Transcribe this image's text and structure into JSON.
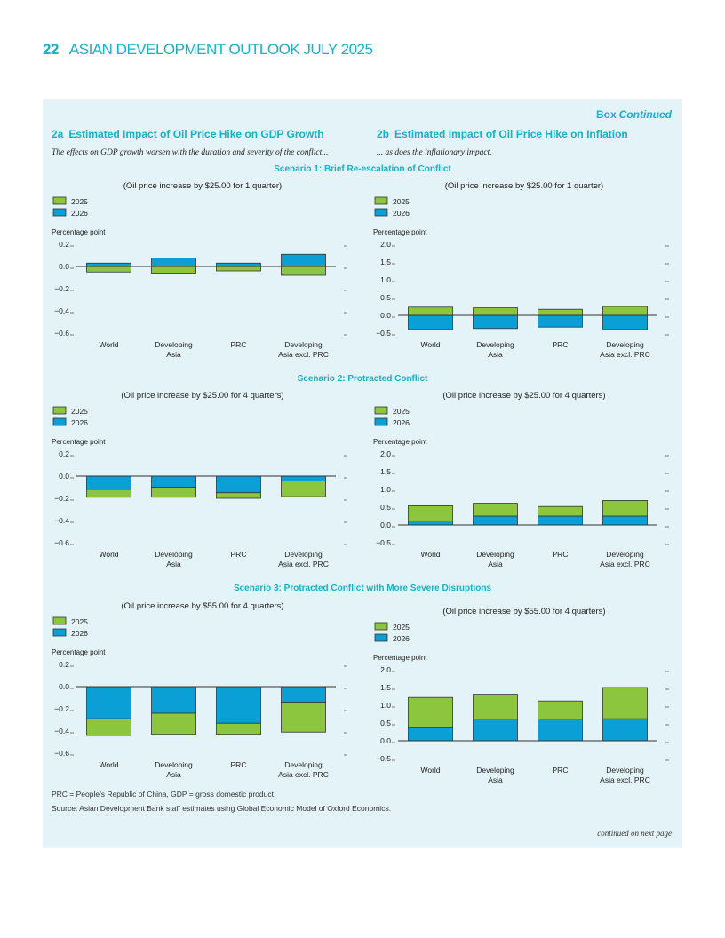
{
  "header": {
    "page_number": "22",
    "publication": "ASIAN DEVELOPMENT OUTLOOK JULY 2025"
  },
  "box": {
    "label": "Box",
    "label_suffix": "Continued",
    "continued_text": "continued on next page"
  },
  "figures": {
    "left": {
      "number": "2a",
      "title": "Estimated Impact of Oil Price Hike on GDP Growth",
      "subtitle": "The effects on GDP growth worsen with the duration and severity of the conflict..."
    },
    "right": {
      "number": "2b",
      "title": "Estimated Impact of Oil Price Hike on Inflation",
      "subtitle": "... as does the inflationary impact."
    }
  },
  "scenarios": [
    {
      "title": "Scenario 1: Brief Re-escalation of Conflict"
    },
    {
      "title": "Scenario 2: Protracted Conflict"
    },
    {
      "title": "Scenario 3: Protracted Conflict with More Severe Disruptions"
    }
  ],
  "notes": {
    "abbreviations": "PRC = People's Republic of China, GDP = gross domestic product.",
    "source": "Source: Asian Development Bank staff estimates using Global Economic Model of Oxford Economics."
  },
  "colors": {
    "series_2025": "#8cc63f",
    "series_2026": "#0aa0d6",
    "accent": "#1ab0c8",
    "box_bg": "#e4f3f8"
  },
  "chart_data": [
    {
      "id": "s1-gdp",
      "type": "bar",
      "stacked": true,
      "title": "(Oil price increase by $25.00 for 1 quarter)",
      "ylabel": "Percentage point",
      "ylim": [
        -0.6,
        0.2
      ],
      "yticks": [
        "0.2",
        "0.0",
        "−0.2",
        "−0.4",
        "−0.6"
      ],
      "ytick_values": [
        0.2,
        0.0,
        -0.2,
        -0.4,
        -0.6
      ],
      "categories": [
        "World",
        "Developing|Asia",
        "PRC",
        "Developing|Asia excl. PRC"
      ],
      "legend": "top-left",
      "series": [
        {
          "name": "2025",
          "values": [
            -0.05,
            -0.06,
            -0.04,
            -0.08
          ]
        },
        {
          "name": "2026",
          "values": [
            0.03,
            0.075,
            0.03,
            0.11
          ]
        }
      ]
    },
    {
      "id": "s1-inf",
      "type": "bar",
      "stacked": true,
      "title": "(Oil price increase by $25.00 for 1 quarter)",
      "ylabel": "Percentage point",
      "ylim": [
        -0.5,
        2.0
      ],
      "yticks": [
        "2.0",
        "1.5",
        "1.0",
        "0.5",
        "0.0",
        "−0.5"
      ],
      "ytick_values": [
        2.0,
        1.5,
        1.0,
        0.5,
        0.0,
        -0.5
      ],
      "categories": [
        "World",
        "Developing|Asia",
        "PRC",
        "Developing|Asia excl. PRC"
      ],
      "legend": "top-left",
      "series": [
        {
          "name": "2025",
          "values": [
            0.23,
            0.21,
            0.17,
            0.25
          ]
        },
        {
          "name": "2026",
          "values": [
            -0.4,
            -0.37,
            -0.33,
            -0.4
          ]
        }
      ]
    },
    {
      "id": "s2-gdp",
      "type": "bar",
      "stacked": true,
      "title": "(Oil price increase by $25.00 for 4 quarters)",
      "ylabel": "Percentage point",
      "ylim": [
        -0.6,
        0.2
      ],
      "yticks": [
        "0.2",
        "0.0",
        "−0.2",
        "−0.4",
        "−0.6"
      ],
      "ytick_values": [
        0.2,
        0.0,
        -0.2,
        -0.4,
        -0.6
      ],
      "categories": [
        "World",
        "Developing|Asia",
        "PRC",
        "Developing|Asia excl. PRC"
      ],
      "legend": "top-left",
      "series": [
        {
          "name": "2025",
          "values": [
            -0.07,
            -0.09,
            -0.05,
            -0.14
          ]
        },
        {
          "name": "2026",
          "values": [
            -0.12,
            -0.1,
            -0.15,
            -0.045
          ]
        }
      ]
    },
    {
      "id": "s2-inf",
      "type": "bar",
      "stacked": true,
      "title": "(Oil price increase by $25.00 for 4 quarters)",
      "ylabel": "Percentage point",
      "ylim": [
        -0.5,
        2.0
      ],
      "yticks": [
        "2.0",
        "1.5",
        "1.0",
        "0.5",
        "0.0",
        "−0.5"
      ],
      "ytick_values": [
        2.0,
        1.5,
        1.0,
        0.5,
        0.0,
        -0.5
      ],
      "categories": [
        "World",
        "Developing|Asia",
        "PRC",
        "Developing|Asia excl. PRC"
      ],
      "legend": "top-left",
      "series": [
        {
          "name": "2025",
          "values": [
            0.43,
            0.36,
            0.27,
            0.44
          ]
        },
        {
          "name": "2026",
          "values": [
            0.11,
            0.25,
            0.25,
            0.25
          ]
        }
      ]
    },
    {
      "id": "s3-gdp",
      "type": "bar",
      "stacked": true,
      "title": "(Oil price increase by $55.00 for 4 quarters)",
      "ylabel": "Percentage point",
      "ylim": [
        -0.6,
        0.2
      ],
      "yticks": [
        "0.2",
        "0.0",
        "−0.2",
        "−0.4",
        "−0.6"
      ],
      "ytick_values": [
        0.2,
        0.0,
        -0.2,
        -0.4,
        -0.6
      ],
      "categories": [
        "World",
        "Developing|Asia",
        "PRC",
        "Developing|Asia excl. PRC"
      ],
      "legend": "top-left",
      "series": [
        {
          "name": "2025",
          "values": [
            -0.15,
            -0.19,
            -0.1,
            -0.27
          ]
        },
        {
          "name": "2026",
          "values": [
            -0.29,
            -0.24,
            -0.33,
            -0.14
          ]
        }
      ]
    },
    {
      "id": "s3-inf",
      "type": "bar",
      "stacked": true,
      "title": "(Oil price increase by $55.00 for 4 quarters)",
      "ylabel": "Percentage point",
      "ylim": [
        -0.5,
        2.0
      ],
      "yticks": [
        "2.0",
        "1.5",
        "1.0",
        "0.5",
        "0.0",
        "−0.5"
      ],
      "ytick_values": [
        2.0,
        1.5,
        1.0,
        0.5,
        0.0,
        -0.5
      ],
      "categories": [
        "World",
        "Developing|Asia",
        "PRC",
        "Developing|Asia excl. PRC"
      ],
      "legend": "top-left",
      "series": [
        {
          "name": "2025",
          "values": [
            0.86,
            0.7,
            0.51,
            0.88
          ]
        },
        {
          "name": "2026",
          "values": [
            0.36,
            0.61,
            0.61,
            0.62
          ]
        }
      ]
    }
  ]
}
